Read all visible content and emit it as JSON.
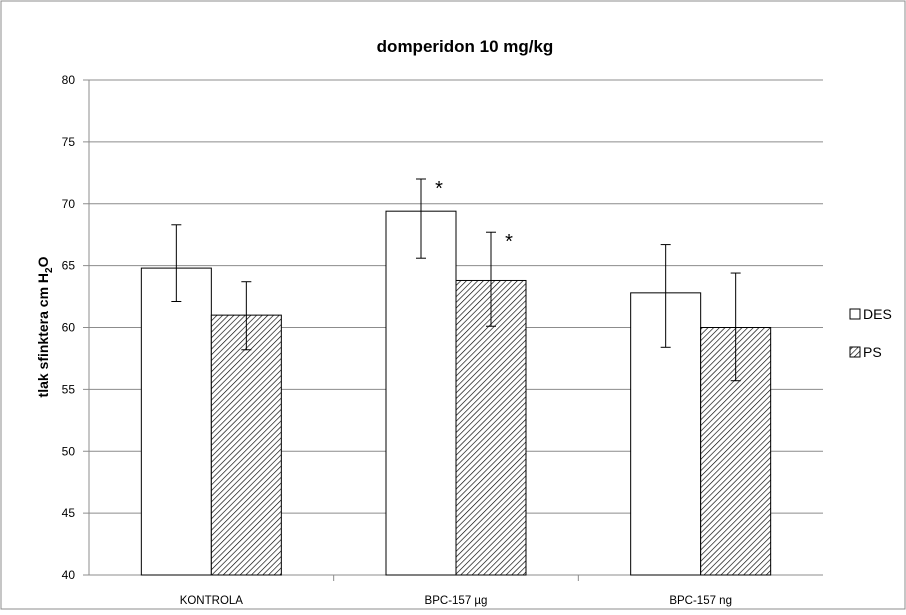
{
  "chart_data": {
    "type": "bar",
    "title": "domperidon 10 mg/kg",
    "ylabel": {
      "prefix": "tlak sfinktera cm H",
      "subscript": "2",
      "suffix": "O"
    },
    "xlabel": "",
    "ylim": [
      40,
      80
    ],
    "yticks": [
      40,
      45,
      50,
      55,
      60,
      65,
      70,
      75,
      80
    ],
    "grid": true,
    "legend_position": "right",
    "categories": [
      "KONTROLA",
      "BPC-157 µg",
      "BPC-157 ng"
    ],
    "series": [
      {
        "name": "DES",
        "pattern": "none",
        "values": [
          64.8,
          69.4,
          62.8
        ],
        "err_low": [
          62.1,
          65.6,
          58.4
        ],
        "err_high": [
          68.3,
          72.0,
          66.7
        ],
        "markers": [
          "",
          "*",
          ""
        ]
      },
      {
        "name": "PS",
        "pattern": "hatch",
        "values": [
          61.0,
          63.8,
          60.0
        ],
        "err_low": [
          58.2,
          60.1,
          55.7
        ],
        "err_high": [
          63.7,
          67.7,
          64.4
        ],
        "markers": [
          "",
          "*",
          ""
        ]
      }
    ],
    "colors": {
      "bar_fill": "#ffffff",
      "bar_stroke": "#000000",
      "grid": "#8c8c8c",
      "frame": "#8c8c8c"
    }
  }
}
